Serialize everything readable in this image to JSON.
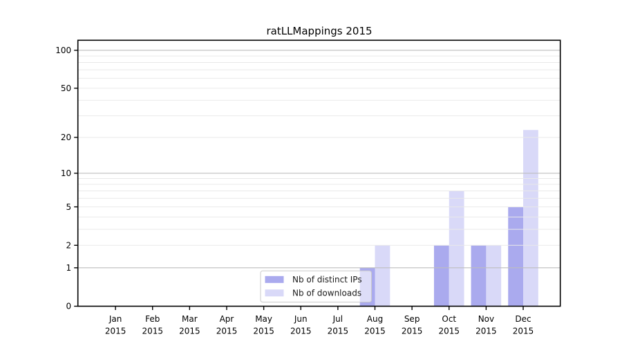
{
  "chart_data": {
    "type": "bar",
    "title": "ratLLMappings 2015",
    "categories": [
      "Jan",
      "Feb",
      "Mar",
      "Apr",
      "May",
      "Jun",
      "Jul",
      "Aug",
      "Sep",
      "Oct",
      "Nov",
      "Dec"
    ],
    "year_label": "2015",
    "series": [
      {
        "name": "Nb of distinct IPs",
        "color": "#aaaaee",
        "values": [
          0,
          0,
          0,
          0,
          0,
          0,
          0,
          1,
          0,
          2,
          2,
          5
        ]
      },
      {
        "name": "Nb of downloads",
        "color": "#d9d9f8",
        "values": [
          0,
          0,
          0,
          0,
          0,
          0,
          0,
          2,
          0,
          7,
          2,
          23
        ]
      }
    ],
    "y_ticks": [
      0,
      1,
      2,
      5,
      10,
      20,
      50,
      100
    ],
    "y_scale": "log1p",
    "ylim": [
      0,
      120
    ],
    "xlabel": "",
    "ylabel": "",
    "grid": true,
    "legend_position": "inside-bottom-center",
    "colors": {
      "axis": "#000000",
      "text": "#000000",
      "major_gridline": "#bdbdbd",
      "minor_gridline": "#e9e9e9",
      "legend_border": "#c9c9c9",
      "legend_background": "rgba(255,255,255,0.6)"
    }
  }
}
